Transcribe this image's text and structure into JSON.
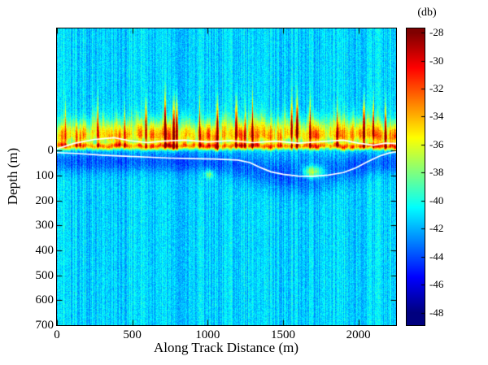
{
  "chart_data": {
    "type": "heatmap",
    "title": "",
    "xlabel": "Along Track Distance (m)",
    "ylabel": "Depth (m)",
    "x_range": [
      0,
      2250
    ],
    "y_range_depth": [
      -490,
      700
    ],
    "x_ticks": [
      0,
      500,
      1000,
      1500,
      2000
    ],
    "y_ticks": [
      0,
      100,
      200,
      300,
      400,
      500,
      600,
      700
    ],
    "grid": false,
    "colorbar": {
      "label": "(db)",
      "ticks": [
        -28,
        -30,
        -32,
        -34,
        -36,
        -38,
        -40,
        -42,
        -44,
        -46,
        -48
      ],
      "range": [
        -28,
        -48
      ],
      "display_range": [
        -27.7,
        -48.9
      ],
      "colormap": "jet",
      "position": "right"
    },
    "features": {
      "background_db": -41.3,
      "layer_center_depth": -60,
      "core_depth": -18,
      "layer_amplitude_db_max": 14,
      "plume_top_depth": -180,
      "subsurface_dark_band": {
        "depth_range": [
          0,
          120
        ],
        "attenuation_db": 2.3
      },
      "blobs": [
        {
          "x": 1700,
          "depth": 85,
          "amp": 6.5,
          "sx": 70,
          "sd": 25
        },
        {
          "x": 1010,
          "depth": 95,
          "amp": 4.0,
          "sx": 30,
          "sd": 18
        }
      ]
    },
    "white_lines": [
      {
        "name": "upper-boundary",
        "points": [
          [
            0,
            -8
          ],
          [
            120,
            -30
          ],
          [
            250,
            -45
          ],
          [
            380,
            -52
          ],
          [
            480,
            -40
          ],
          [
            600,
            -32
          ],
          [
            700,
            -38
          ],
          [
            850,
            -42
          ],
          [
            1000,
            -35
          ],
          [
            1150,
            -40
          ],
          [
            1300,
            -32
          ],
          [
            1450,
            -38
          ],
          [
            1600,
            -30
          ],
          [
            1750,
            -36
          ],
          [
            1900,
            -42
          ],
          [
            2000,
            -30
          ],
          [
            2100,
            -22
          ],
          [
            2180,
            -30
          ],
          [
            2250,
            -28
          ]
        ]
      },
      {
        "name": "lower-boundary",
        "points": [
          [
            0,
            8
          ],
          [
            150,
            12
          ],
          [
            300,
            18
          ],
          [
            450,
            22
          ],
          [
            600,
            26
          ],
          [
            750,
            30
          ],
          [
            900,
            32
          ],
          [
            1050,
            34
          ],
          [
            1200,
            38
          ],
          [
            1280,
            48
          ],
          [
            1350,
            68
          ],
          [
            1420,
            85
          ],
          [
            1500,
            95
          ],
          [
            1600,
            102
          ],
          [
            1700,
            103
          ],
          [
            1800,
            98
          ],
          [
            1900,
            88
          ],
          [
            1980,
            70
          ],
          [
            2060,
            45
          ],
          [
            2140,
            22
          ],
          [
            2200,
            10
          ],
          [
            2250,
            4
          ]
        ]
      }
    ]
  }
}
